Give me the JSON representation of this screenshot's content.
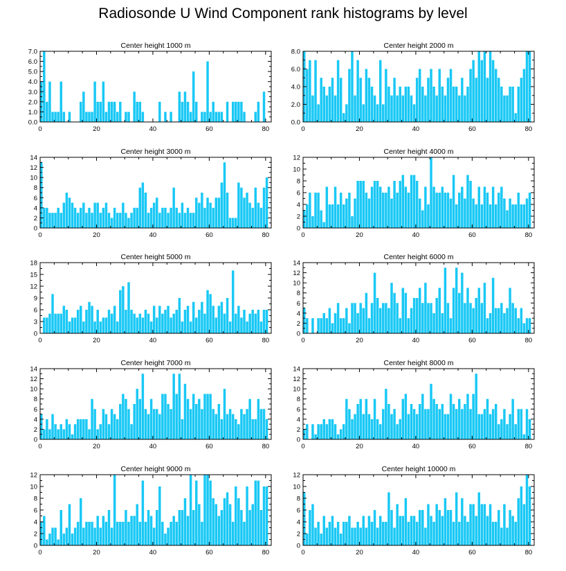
{
  "title": "Radiosonde U Wind Component rank histograms by level",
  "bar_color": "#19c8f5",
  "chart_data": [
    {
      "type": "bar",
      "title": "Center height 1000 m",
      "xlim": [
        0,
        82
      ],
      "ylim": [
        0,
        7
      ],
      "xticks": [
        0,
        20,
        40,
        60,
        80
      ],
      "xtick_labels": [
        "0",
        "20",
        "40",
        "60",
        "80"
      ],
      "yticks": [
        0,
        1,
        2,
        3,
        4,
        5,
        6,
        7
      ],
      "ytick_labels": [
        "0.0",
        "1.0",
        "2.0",
        "3.0",
        "4.0",
        "5.0",
        "6.0",
        "7.0"
      ],
      "values": [
        4,
        7,
        2,
        4,
        1,
        1,
        1,
        4,
        1,
        0,
        1,
        0,
        0,
        0,
        2,
        3,
        1,
        1,
        1,
        4,
        2,
        2,
        4,
        1,
        2,
        2,
        2,
        1,
        2,
        0,
        1,
        1,
        0,
        3,
        2,
        2,
        1,
        0,
        0,
        0,
        0,
        0,
        2,
        0,
        1,
        0,
        1,
        0,
        0,
        3,
        2,
        3,
        2,
        1,
        5,
        2,
        0,
        1,
        1,
        6,
        1,
        2,
        1,
        1,
        1,
        0,
        2,
        0,
        2,
        2,
        2,
        2,
        1,
        0,
        0,
        0,
        1,
        2,
        0,
        3,
        0
      ]
    },
    {
      "type": "bar",
      "title": "Center height 2000 m",
      "xlim": [
        0,
        82
      ],
      "ylim": [
        0,
        8
      ],
      "xticks": [
        0,
        20,
        40,
        60,
        80
      ],
      "xtick_labels": [
        "0",
        "20",
        "40",
        "60",
        "80"
      ],
      "yticks": [
        0,
        2,
        4,
        6,
        8
      ],
      "ytick_labels": [
        "0.0",
        "2.0",
        "4.0",
        "6.0",
        "8.0"
      ],
      "values": [
        8,
        6,
        7,
        3,
        7,
        2,
        5,
        4,
        3,
        4,
        5,
        3,
        7,
        5,
        1,
        2,
        6,
        8,
        3,
        7,
        5,
        2,
        6,
        5,
        4,
        3,
        2,
        7,
        2,
        6,
        4,
        3,
        5,
        3,
        4,
        3,
        4,
        4,
        3,
        2,
        5,
        6,
        4,
        3,
        5,
        6,
        4,
        3,
        6,
        4,
        3,
        5,
        6,
        4,
        4,
        3,
        5,
        3,
        4,
        6,
        7,
        5,
        8,
        7,
        8,
        5,
        8,
        7,
        6,
        5,
        4,
        3,
        3,
        4,
        4,
        1,
        4,
        5,
        6,
        8,
        8
      ]
    },
    {
      "type": "bar",
      "title": "Center height 3000 m",
      "xlim": [
        0,
        82
      ],
      "ylim": [
        0,
        14
      ],
      "xticks": [
        0,
        20,
        40,
        60,
        80
      ],
      "xtick_labels": [
        "0",
        "20",
        "40",
        "60",
        "80"
      ],
      "yticks": [
        0,
        2,
        4,
        6,
        8,
        10,
        12,
        14
      ],
      "ytick_labels": [
        "0",
        "2",
        "4",
        "6",
        "8",
        "10",
        "12",
        "14"
      ],
      "values": [
        13,
        4,
        4,
        3,
        3,
        3,
        4,
        3,
        5,
        7,
        6,
        5,
        4,
        3,
        4,
        5,
        3,
        4,
        3,
        5,
        5,
        3,
        4,
        5,
        3,
        2,
        4,
        3,
        3,
        5,
        3,
        2,
        3,
        4,
        4,
        8,
        9,
        7,
        3,
        4,
        5,
        6,
        3,
        4,
        4,
        3,
        4,
        8,
        4,
        3,
        5,
        3,
        4,
        3,
        3,
        6,
        5,
        7,
        4,
        6,
        5,
        4,
        6,
        6,
        9,
        13,
        7,
        2,
        2,
        2,
        9,
        8,
        6,
        7,
        5,
        4,
        8,
        5,
        4,
        8,
        10
      ]
    },
    {
      "type": "bar",
      "title": "Center height 4000 m",
      "xlim": [
        0,
        82
      ],
      "ylim": [
        0,
        12
      ],
      "xticks": [
        0,
        20,
        40,
        60,
        80
      ],
      "xtick_labels": [
        "0",
        "20",
        "40",
        "60",
        "80"
      ],
      "yticks": [
        0,
        2,
        4,
        6,
        8,
        10,
        12
      ],
      "ytick_labels": [
        "0",
        "2",
        "4",
        "6",
        "8",
        "10",
        "12"
      ],
      "values": [
        3,
        4,
        6,
        2,
        6,
        6,
        3,
        1,
        7,
        4,
        4,
        7,
        4,
        6,
        4,
        5,
        6,
        2,
        5,
        8,
        8,
        8,
        6,
        5,
        7,
        8,
        8,
        7,
        6,
        6,
        7,
        5,
        8,
        6,
        8,
        9,
        7,
        6,
        9,
        9,
        8,
        5,
        3,
        7,
        4,
        12,
        7,
        6,
        6,
        7,
        6,
        6,
        5,
        9,
        4,
        6,
        7,
        5,
        9,
        8,
        5,
        4,
        7,
        4,
        7,
        6,
        4,
        7,
        4,
        6,
        7,
        5,
        3,
        5,
        4,
        4,
        6,
        4,
        4,
        5,
        6
      ]
    },
    {
      "type": "bar",
      "title": "Center height 5000 m",
      "xlim": [
        0,
        82
      ],
      "ylim": [
        0,
        18
      ],
      "xticks": [
        0,
        20,
        40,
        60,
        80
      ],
      "xtick_labels": [
        "0",
        "20",
        "40",
        "60",
        "80"
      ],
      "yticks": [
        0,
        3,
        6,
        9,
        12,
        15,
        18
      ],
      "ytick_labels": [
        "0",
        "3",
        "6",
        "9",
        "12",
        "15",
        "18"
      ],
      "values": [
        0,
        4,
        4,
        5,
        10,
        5,
        5,
        5,
        7,
        6,
        3,
        4,
        4,
        6,
        7,
        3,
        6,
        8,
        7,
        3,
        6,
        3,
        4,
        4,
        6,
        5,
        7,
        3,
        11,
        12,
        6,
        13,
        6,
        5,
        4,
        5,
        4,
        6,
        5,
        3,
        7,
        4,
        7,
        5,
        6,
        7,
        4,
        5,
        6,
        9,
        3,
        6,
        7,
        3,
        8,
        4,
        6,
        8,
        5,
        11,
        10,
        7,
        4,
        7,
        8,
        5,
        9,
        3,
        16,
        5,
        7,
        4,
        6,
        3,
        5,
        6,
        5,
        6,
        3,
        6,
        6
      ]
    },
    {
      "type": "bar",
      "title": "Center height 6000 m",
      "xlim": [
        0,
        82
      ],
      "ylim": [
        0,
        14
      ],
      "xticks": [
        0,
        20,
        40,
        60,
        80
      ],
      "xtick_labels": [
        "0",
        "20",
        "40",
        "60",
        "80"
      ],
      "yticks": [
        0,
        2,
        4,
        6,
        8,
        10,
        12,
        14
      ],
      "ytick_labels": [
        "0",
        "2",
        "4",
        "6",
        "8",
        "10",
        "12",
        "14"
      ],
      "values": [
        5,
        3,
        0,
        3,
        0,
        3,
        3,
        4,
        3,
        5,
        2,
        4,
        6,
        3,
        3,
        5,
        2,
        6,
        6,
        4,
        6,
        5,
        8,
        3,
        6,
        12,
        7,
        5,
        6,
        6,
        5,
        10,
        8,
        6,
        3,
        9,
        8,
        3,
        5,
        7,
        7,
        9,
        6,
        10,
        6,
        6,
        4,
        7,
        9,
        4,
        13,
        6,
        3,
        9,
        13,
        8,
        12,
        6,
        9,
        6,
        5,
        7,
        9,
        6,
        10,
        3,
        4,
        11,
        5,
        5,
        6,
        4,
        5,
        9,
        6,
        5,
        3,
        5,
        2,
        3,
        3
      ]
    },
    {
      "type": "bar",
      "title": "Center height 7000 m",
      "xlim": [
        0,
        82
      ],
      "ylim": [
        0,
        14
      ],
      "xticks": [
        0,
        20,
        40,
        60,
        80
      ],
      "xtick_labels": [
        "0",
        "20",
        "40",
        "60",
        "80"
      ],
      "yticks": [
        0,
        2,
        4,
        6,
        8,
        10,
        12,
        14
      ],
      "ytick_labels": [
        "0",
        "2",
        "4",
        "6",
        "8",
        "10",
        "12",
        "14"
      ],
      "values": [
        5,
        2,
        4,
        2,
        5,
        3,
        2,
        3,
        2,
        4,
        3,
        1,
        3,
        4,
        4,
        4,
        4,
        2,
        8,
        6,
        2,
        3,
        6,
        5,
        3,
        6,
        5,
        4,
        7,
        9,
        8,
        6,
        3,
        7,
        10,
        8,
        13,
        6,
        5,
        8,
        6,
        6,
        5,
        9,
        9,
        7,
        6,
        13,
        9,
        13,
        4,
        11,
        8,
        6,
        9,
        7,
        8,
        6,
        9,
        9,
        9,
        6,
        5,
        7,
        4,
        10,
        5,
        6,
        5,
        4,
        3,
        6,
        5,
        6,
        8,
        4,
        4,
        8,
        6,
        6,
        4
      ]
    },
    {
      "type": "bar",
      "title": "Center height 8000 m",
      "xlim": [
        0,
        82
      ],
      "ylim": [
        0,
        14
      ],
      "xticks": [
        0,
        20,
        40,
        60,
        80
      ],
      "xtick_labels": [
        "0",
        "20",
        "40",
        "60",
        "80"
      ],
      "yticks": [
        0,
        2,
        4,
        6,
        8,
        10,
        12,
        14
      ],
      "ytick_labels": [
        "0",
        "2",
        "4",
        "6",
        "8",
        "10",
        "12",
        "14"
      ],
      "values": [
        2,
        3,
        0,
        3,
        1,
        3,
        3,
        4,
        3,
        4,
        4,
        3,
        1,
        2,
        3,
        8,
        6,
        4,
        5,
        7,
        8,
        5,
        8,
        5,
        4,
        8,
        4,
        3,
        6,
        10,
        7,
        5,
        6,
        3,
        4,
        8,
        9,
        5,
        7,
        6,
        5,
        7,
        9,
        6,
        6,
        11,
        8,
        7,
        6,
        7,
        5,
        5,
        9,
        7,
        6,
        8,
        6,
        7,
        9,
        6,
        9,
        13,
        5,
        5,
        6,
        8,
        5,
        6,
        7,
        3,
        4,
        6,
        3,
        5,
        8,
        3,
        6,
        6,
        1,
        6,
        4
      ]
    },
    {
      "type": "bar",
      "title": "Center height 9000 m",
      "xlim": [
        0,
        82
      ],
      "ylim": [
        0,
        12
      ],
      "xticks": [
        0,
        20,
        40,
        60,
        80
      ],
      "xtick_labels": [
        "0",
        "20",
        "40",
        "60",
        "80"
      ],
      "yticks": [
        0,
        2,
        4,
        6,
        8,
        10,
        12
      ],
      "ytick_labels": [
        "0",
        "2",
        "4",
        "6",
        "8",
        "10",
        "12"
      ],
      "values": [
        4,
        5,
        1,
        2,
        3,
        3,
        1,
        6,
        2,
        3,
        7,
        2,
        3,
        4,
        8,
        3,
        4,
        4,
        4,
        3,
        5,
        3,
        5,
        4,
        6,
        3,
        12,
        4,
        4,
        4,
        6,
        4,
        5,
        5,
        7,
        4,
        11,
        4,
        6,
        5,
        3,
        6,
        10,
        4,
        2,
        3,
        4,
        5,
        4,
        6,
        6,
        8,
        5,
        12,
        6,
        11,
        7,
        4,
        12,
        12,
        11,
        8,
        7,
        5,
        6,
        8,
        9,
        7,
        4,
        10,
        8,
        6,
        4,
        10,
        6,
        7,
        11,
        11,
        6,
        10,
        10
      ]
    },
    {
      "type": "bar",
      "title": "Center height 10000 m",
      "xlim": [
        0,
        82
      ],
      "ylim": [
        0,
        12
      ],
      "xticks": [
        0,
        20,
        40,
        60,
        80
      ],
      "xtick_labels": [
        "0",
        "20",
        "40",
        "60",
        "80"
      ],
      "yticks": [
        0,
        2,
        4,
        6,
        8,
        10,
        12
      ],
      "ytick_labels": [
        "0",
        "2",
        "4",
        "6",
        "8",
        "10",
        "12"
      ],
      "values": [
        9,
        2,
        6,
        7,
        3,
        4,
        2,
        5,
        3,
        4,
        5,
        3,
        4,
        2,
        4,
        4,
        5,
        3,
        3,
        4,
        3,
        5,
        3,
        5,
        4,
        6,
        3,
        5,
        4,
        4,
        9,
        6,
        3,
        7,
        5,
        5,
        8,
        4,
        5,
        5,
        4,
        6,
        6,
        3,
        7,
        5,
        4,
        7,
        6,
        5,
        8,
        6,
        6,
        4,
        9,
        4,
        8,
        5,
        4,
        7,
        7,
        5,
        9,
        7,
        7,
        5,
        7,
        4,
        4,
        6,
        3,
        7,
        3,
        6,
        5,
        4,
        8,
        10,
        7,
        12,
        10
      ]
    }
  ]
}
